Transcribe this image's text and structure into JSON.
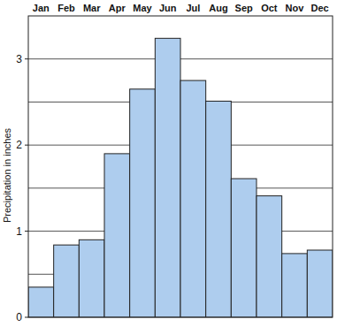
{
  "chart_data": {
    "type": "bar",
    "y_label": "Precipitation in inches",
    "categories": [
      "Jan",
      "Feb",
      "Mar",
      "Apr",
      "May",
      "Jun",
      "Jul",
      "Aug",
      "Sep",
      "Oct",
      "Nov",
      "Dec"
    ],
    "values": [
      0.35,
      0.84,
      0.9,
      1.9,
      2.65,
      3.24,
      2.75,
      2.51,
      1.61,
      1.41,
      0.74,
      0.78
    ],
    "color": "#aecdee",
    "ylim": [
      0,
      3.5
    ],
    "yticks": [
      0,
      1,
      2,
      3
    ],
    "grid": true
  }
}
